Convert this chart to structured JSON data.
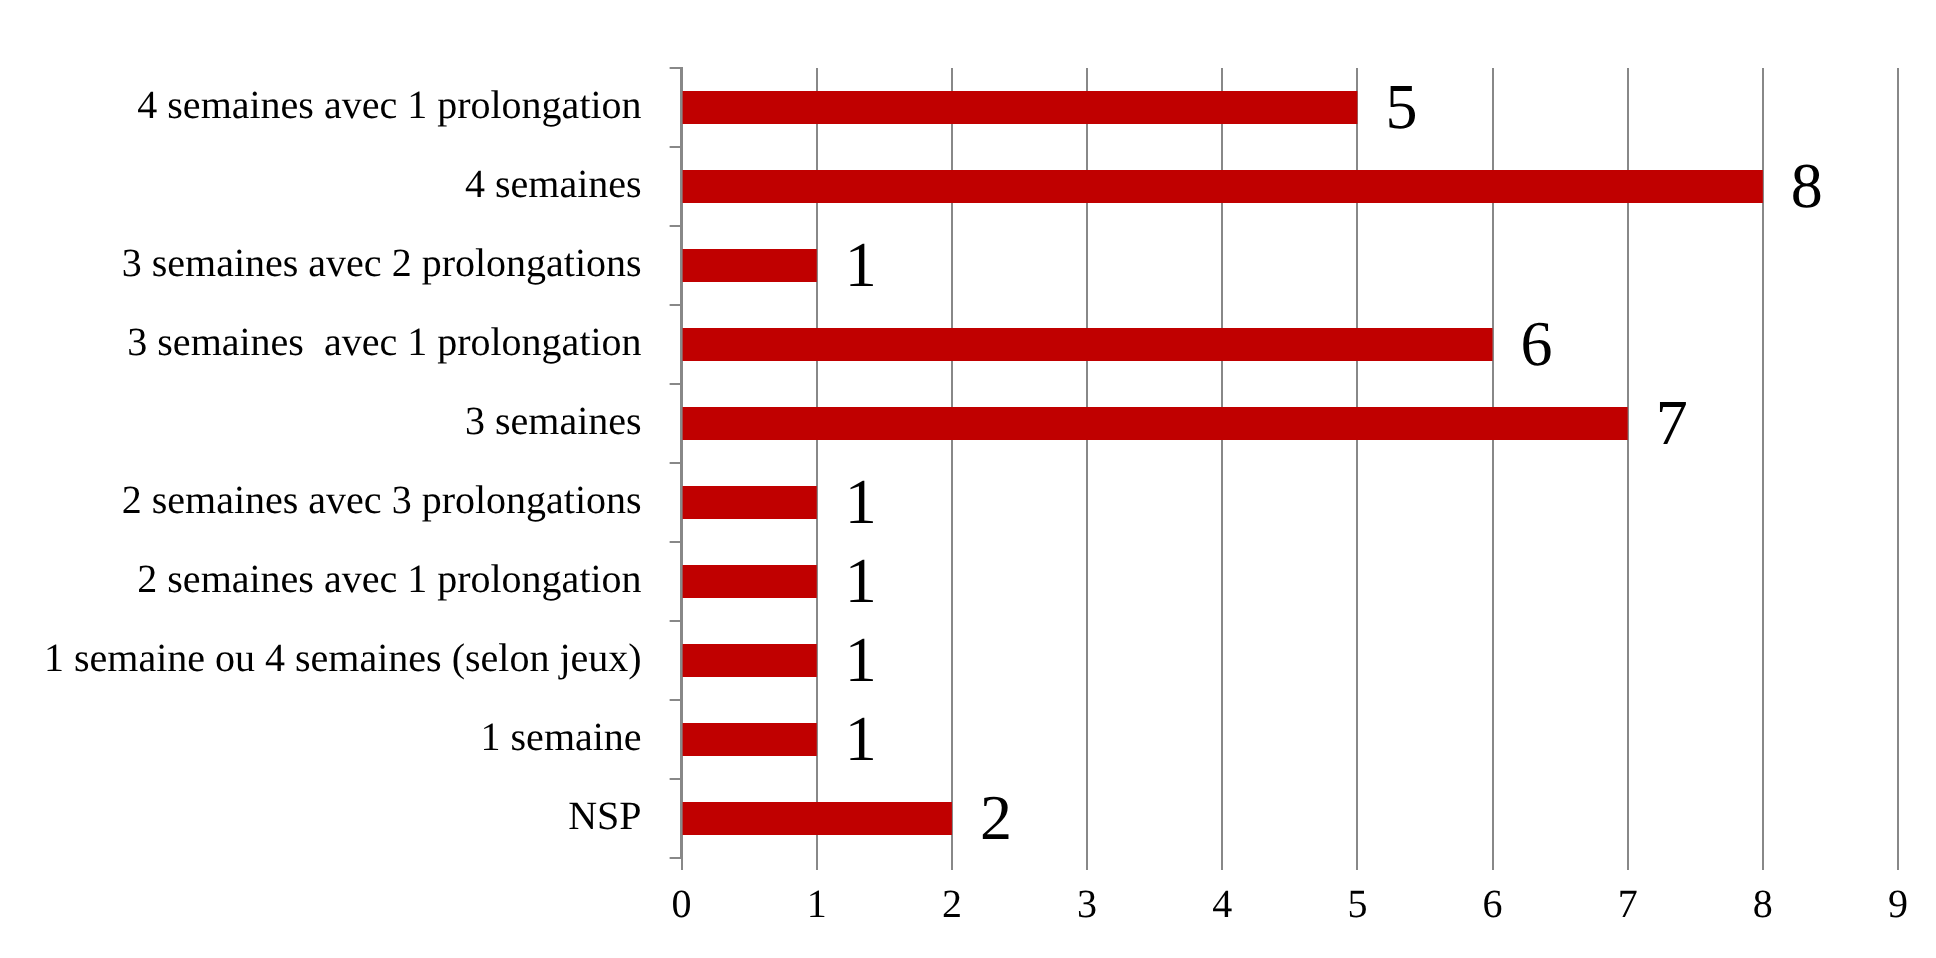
{
  "chart_data": {
    "type": "bar",
    "orientation": "horizontal",
    "categories": [
      "4 semaines avec 1 prolongation",
      "4 semaines",
      "3 semaines avec 2 prolongations",
      "3 semaines  avec 1 prolongation",
      "3 semaines",
      "2 semaines avec 3 prolongations",
      "2 semaines avec 1 prolongation",
      "1 semaine ou 4 semaines (selon jeux)",
      "1 semaine",
      "NSP"
    ],
    "values": [
      5,
      8,
      1,
      6,
      7,
      1,
      1,
      1,
      1,
      2
    ],
    "color": "#c00000",
    "xlim": [
      0,
      9
    ],
    "xticks": [
      0,
      1,
      2,
      3,
      4,
      5,
      6,
      7,
      8,
      9
    ],
    "grid": "x",
    "data_labels": true,
    "legend": false
  }
}
